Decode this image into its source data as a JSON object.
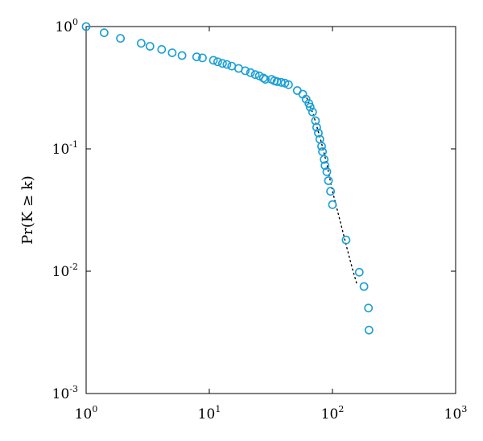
{
  "chart_data": {
    "type": "scatter",
    "xscale": "log",
    "yscale": "log",
    "xlim": [
      1,
      1000
    ],
    "ylim": [
      0.001,
      1
    ],
    "xlabel": "",
    "ylabel": "Pr(K ≥ k)",
    "grid": false,
    "x_ticks": [
      {
        "base": "10",
        "exp": "0",
        "value": 1
      },
      {
        "base": "10",
        "exp": "1",
        "value": 10
      },
      {
        "base": "10",
        "exp": "2",
        "value": 100
      },
      {
        "base": "10",
        "exp": "3",
        "value": 1000
      }
    ],
    "y_ticks": [
      {
        "base": "10",
        "exp": "0",
        "value": 1
      },
      {
        "base": "10",
        "exp": "-1",
        "value": 0.1
      },
      {
        "base": "10",
        "exp": "-2",
        "value": 0.01
      },
      {
        "base": "10",
        "exp": "-3",
        "value": 0.001
      }
    ],
    "marker_color": "#1a9fd6",
    "fit_color": "#000000",
    "series": [
      {
        "marker": "open-circle",
        "points": [
          [
            1.0,
            1.0
          ],
          [
            1.4,
            0.89
          ],
          [
            1.9,
            0.8
          ],
          [
            2.8,
            0.73
          ],
          [
            3.3,
            0.69
          ],
          [
            4.1,
            0.65
          ],
          [
            5.0,
            0.61
          ],
          [
            6.0,
            0.58
          ],
          [
            7.9,
            0.565
          ],
          [
            8.8,
            0.555
          ],
          [
            10.8,
            0.53
          ],
          [
            11.7,
            0.515
          ],
          [
            12.8,
            0.5
          ],
          [
            13.9,
            0.49
          ],
          [
            15.2,
            0.475
          ],
          [
            17.3,
            0.455
          ],
          [
            19.6,
            0.435
          ],
          [
            21.6,
            0.42
          ],
          [
            23.6,
            0.405
          ],
          [
            25.5,
            0.395
          ],
          [
            27.5,
            0.38
          ],
          [
            28.5,
            0.37
          ],
          [
            32.0,
            0.37
          ],
          [
            33.8,
            0.36
          ],
          [
            35.5,
            0.355
          ],
          [
            38.3,
            0.35
          ],
          [
            41.1,
            0.345
          ],
          [
            44.0,
            0.335
          ],
          [
            51.8,
            0.3
          ],
          [
            57.4,
            0.28
          ],
          [
            61.0,
            0.255
          ],
          [
            64.3,
            0.235
          ],
          [
            65.9,
            0.22
          ],
          [
            69.0,
            0.2
          ],
          [
            72.8,
            0.17
          ],
          [
            74.5,
            0.15
          ],
          [
            76.9,
            0.135
          ],
          [
            79.0,
            0.12
          ],
          [
            81.6,
            0.105
          ],
          [
            83.0,
            0.095
          ],
          [
            85.7,
            0.082
          ],
          [
            87.1,
            0.073
          ],
          [
            90.0,
            0.065
          ],
          [
            92.8,
            0.055
          ],
          [
            96.5,
            0.045
          ],
          [
            100.0,
            0.035
          ],
          [
            129.0,
            0.018
          ],
          [
            165.0,
            0.0098
          ],
          [
            180.0,
            0.0075
          ],
          [
            196.0,
            0.005
          ],
          [
            198.0,
            0.0033
          ]
        ]
      },
      {
        "style": "dotted-line",
        "points": [
          [
            62.0,
            0.26
          ],
          [
            70.0,
            0.19
          ],
          [
            80.0,
            0.12
          ],
          [
            90.0,
            0.075
          ],
          [
            100.0,
            0.045
          ],
          [
            115.0,
            0.026
          ],
          [
            130.0,
            0.016
          ],
          [
            145.0,
            0.0105
          ],
          [
            158.0,
            0.0078
          ]
        ]
      }
    ]
  }
}
